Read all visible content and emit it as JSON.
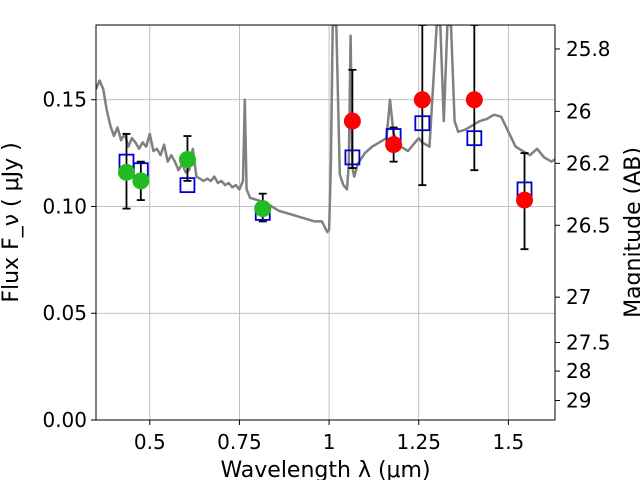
{
  "chart_data": {
    "type": "scatter",
    "xlabel": "Wavelength  λ (μm)",
    "ylabel": "Flux  F_ν  ( μJy )",
    "y2label": "Magnitude (AB)",
    "xlim": [
      0.35,
      1.63
    ],
    "ylim": [
      0.0,
      0.185
    ],
    "grid": true,
    "x_ticks": [
      {
        "value": 0.5,
        "label": "0.5"
      },
      {
        "value": 0.75,
        "label": "0.75"
      },
      {
        "value": 1.0,
        "label": "1"
      },
      {
        "value": 1.25,
        "label": "1.25"
      },
      {
        "value": 1.5,
        "label": "1.5"
      }
    ],
    "y_ticks": [
      {
        "value": 0.0,
        "label": "0.00"
      },
      {
        "value": 0.05,
        "label": "0.05"
      },
      {
        "value": 0.1,
        "label": "0.10"
      },
      {
        "value": 0.15,
        "label": "0.15"
      }
    ],
    "mag_ticks": [
      {
        "value": 25.8,
        "label": "25.8"
      },
      {
        "value": 26.0,
        "label": "26"
      },
      {
        "value": 26.2,
        "label": "26.2"
      },
      {
        "value": 26.5,
        "label": "26.5"
      },
      {
        "value": 27.0,
        "label": "27"
      },
      {
        "value": 27.5,
        "label": "27.5"
      },
      {
        "value": 28.0,
        "label": "28"
      },
      {
        "value": 29.0,
        "label": "29"
      }
    ],
    "template_spectrum": {
      "color": "#808080",
      "x": [
        0.35,
        0.36,
        0.37,
        0.38,
        0.39,
        0.4,
        0.41,
        0.42,
        0.43,
        0.44,
        0.45,
        0.46,
        0.47,
        0.48,
        0.49,
        0.5,
        0.51,
        0.52,
        0.53,
        0.54,
        0.55,
        0.56,
        0.57,
        0.58,
        0.59,
        0.6,
        0.61,
        0.62,
        0.63,
        0.64,
        0.65,
        0.66,
        0.67,
        0.68,
        0.69,
        0.7,
        0.71,
        0.72,
        0.73,
        0.74,
        0.75,
        0.76,
        0.765,
        0.77,
        0.775,
        0.78,
        0.8,
        0.82,
        0.84,
        0.86,
        0.88,
        0.9,
        0.92,
        0.94,
        0.96,
        0.98,
        0.995,
        1.0,
        1.005,
        1.01,
        1.02,
        1.03,
        1.04,
        1.05,
        1.055,
        1.06,
        1.065,
        1.07,
        1.08,
        1.1,
        1.12,
        1.14,
        1.16,
        1.17,
        1.18,
        1.19,
        1.2,
        1.22,
        1.24,
        1.25,
        1.26,
        1.28,
        1.3,
        1.31,
        1.32,
        1.33,
        1.34,
        1.35,
        1.36,
        1.38,
        1.4,
        1.42,
        1.44,
        1.46,
        1.48,
        1.5,
        1.52,
        1.54,
        1.56,
        1.58,
        1.6,
        1.62,
        1.63
      ],
      "y": [
        0.155,
        0.159,
        0.155,
        0.145,
        0.138,
        0.133,
        0.137,
        0.131,
        0.134,
        0.128,
        0.132,
        0.13,
        0.127,
        0.13,
        0.128,
        0.134,
        0.126,
        0.127,
        0.124,
        0.129,
        0.121,
        0.124,
        0.121,
        0.117,
        0.12,
        0.116,
        0.117,
        0.127,
        0.114,
        0.113,
        0.112,
        0.113,
        0.112,
        0.114,
        0.111,
        0.112,
        0.11,
        0.111,
        0.109,
        0.11,
        0.108,
        0.112,
        0.15,
        0.108,
        0.106,
        0.104,
        0.103,
        0.102,
        0.1,
        0.098,
        0.097,
        0.096,
        0.095,
        0.094,
        0.093,
        0.093,
        0.088,
        0.089,
        0.12,
        0.185,
        0.185,
        0.115,
        0.11,
        0.108,
        0.12,
        0.18,
        0.118,
        0.114,
        0.12,
        0.125,
        0.128,
        0.13,
        0.132,
        0.15,
        0.134,
        0.131,
        0.128,
        0.126,
        0.13,
        0.132,
        0.13,
        0.128,
        0.185,
        0.185,
        0.14,
        0.185,
        0.185,
        0.14,
        0.135,
        0.136,
        0.138,
        0.14,
        0.141,
        0.143,
        0.142,
        0.135,
        0.128,
        0.126,
        0.124,
        0.127,
        0.123,
        0.121,
        0.122
      ]
    },
    "series": [
      {
        "marker": "open-square",
        "color": "#0000cc",
        "points": [
          {
            "x": 0.435,
            "y": 0.121
          },
          {
            "x": 0.475,
            "y": 0.117
          },
          {
            "x": 0.605,
            "y": 0.11
          },
          {
            "x": 0.815,
            "y": 0.097
          },
          {
            "x": 1.065,
            "y": 0.123
          },
          {
            "x": 1.18,
            "y": 0.133
          },
          {
            "x": 1.26,
            "y": 0.139
          },
          {
            "x": 1.405,
            "y": 0.132
          },
          {
            "x": 1.545,
            "y": 0.108
          }
        ]
      },
      {
        "marker": "filled-circle",
        "color": "#22bb22",
        "points": [
          {
            "x": 0.435,
            "y": 0.116,
            "err_low": 0.099,
            "err_high": 0.134
          },
          {
            "x": 0.475,
            "y": 0.112,
            "err_low": 0.103,
            "err_high": 0.121
          },
          {
            "x": 0.605,
            "y": 0.122,
            "err_low": 0.112,
            "err_high": 0.133
          },
          {
            "x": 0.815,
            "y": 0.099,
            "err_low": 0.093,
            "err_high": 0.106
          }
        ]
      },
      {
        "marker": "filled-circle",
        "color": "#ff0000",
        "points": [
          {
            "x": 1.065,
            "y": 0.14,
            "err_low": 0.118,
            "err_high": 0.164
          },
          {
            "x": 1.18,
            "y": 0.129,
            "err_low": 0.121,
            "err_high": 0.137
          },
          {
            "x": 1.26,
            "y": 0.15,
            "err_low": 0.11,
            "err_high": 0.185
          },
          {
            "x": 1.405,
            "y": 0.15,
            "err_low": 0.117,
            "err_high": 0.185
          },
          {
            "x": 1.545,
            "y": 0.103,
            "err_low": 0.08,
            "err_high": 0.125
          }
        ]
      }
    ]
  }
}
